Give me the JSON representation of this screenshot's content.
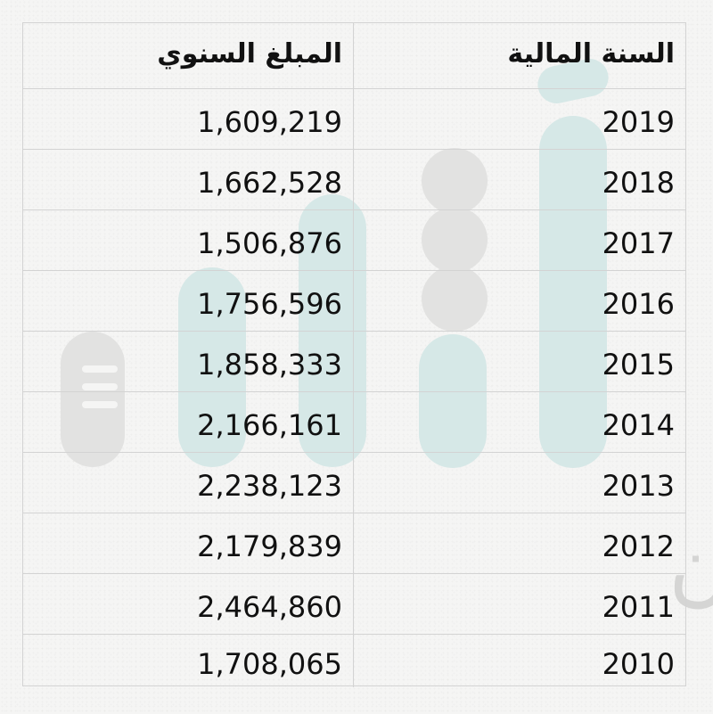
{
  "table": {
    "headers": {
      "year": "السنة المالية",
      "amount": "المبلغ السنوي"
    },
    "rows": [
      {
        "year": "2019",
        "amount": "1,609,219"
      },
      {
        "year": "2018",
        "amount": "1,662,528"
      },
      {
        "year": "2017",
        "amount": "1,506,876"
      },
      {
        "year": "2016",
        "amount": "1,756,596"
      },
      {
        "year": "2015",
        "amount": "1,858,333"
      },
      {
        "year": "2014",
        "amount": "2,166,161"
      },
      {
        "year": "2013",
        "amount": "2,238,123"
      },
      {
        "year": "2012",
        "amount": "2,179,839"
      },
      {
        "year": "2011",
        "amount": "2,464,860"
      },
      {
        "year": "2010",
        "amount": "1,708,065"
      }
    ]
  },
  "watermark": {
    "text": "#حيث_تكون",
    "colors": {
      "teal": "#d4e7e6",
      "grey": "#e3e3e2",
      "text": "#cfcfce"
    }
  }
}
